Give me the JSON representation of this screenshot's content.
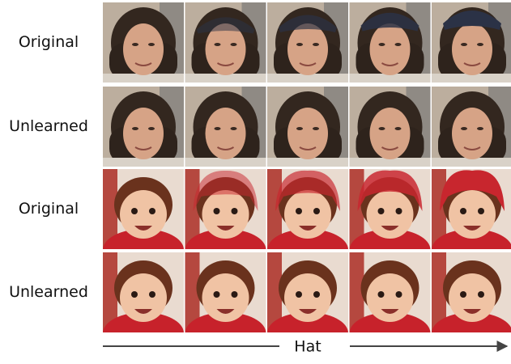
{
  "rows": [
    {
      "label": "Original"
    },
    {
      "label": "Unlearned"
    },
    {
      "label": "Original"
    },
    {
      "label": "Unlearned"
    }
  ],
  "axis_label": "Hat"
}
